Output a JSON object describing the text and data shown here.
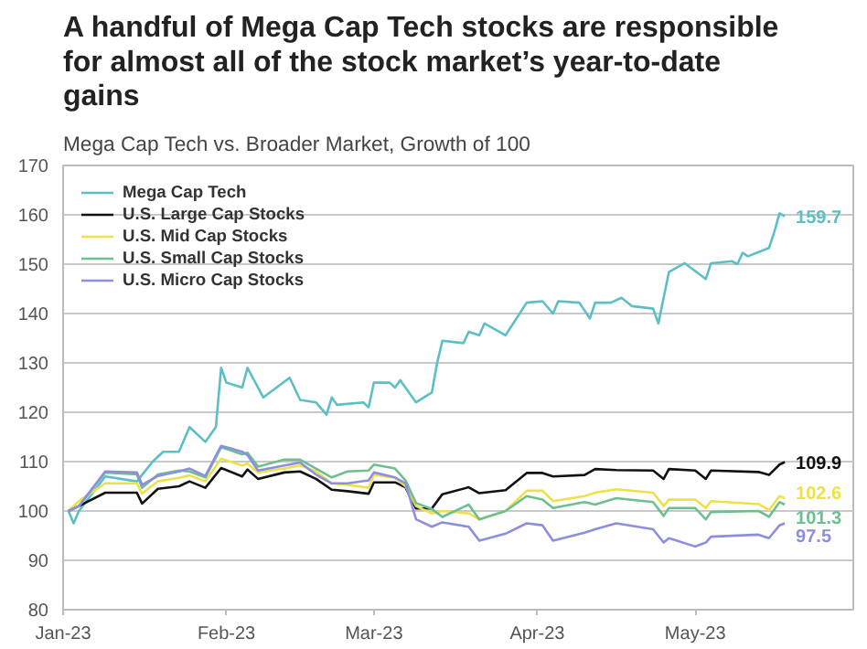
{
  "chart_data": {
    "type": "line",
    "title": "A handful of Mega Cap Tech stocks are responsible for almost all of the stock market’s year-to-date gains",
    "subtitle": "Mega Cap Tech vs. Broader Market, Growth of 100",
    "xlim": [
      "2023-01-01",
      "2023-05-31"
    ],
    "xticks": [
      {
        "value": "2023-01-01",
        "label": "Jan-23"
      },
      {
        "value": "2023-02-01",
        "label": "Feb-23"
      },
      {
        "value": "2023-03-01",
        "label": "Mar-23"
      },
      {
        "value": "2023-04-01",
        "label": "Apr-23"
      },
      {
        "value": "2023-05-01",
        "label": "May-23"
      }
    ],
    "ylim": [
      80,
      170
    ],
    "yticks": [
      80,
      90,
      100,
      110,
      120,
      130,
      140,
      150,
      160,
      170
    ],
    "grid": "y",
    "legend": "top left",
    "series": [
      {
        "name": "Mega Cap Tech",
        "color": "#5bbfc5",
        "x": [
          "2023-01-02",
          "2023-01-03",
          "2023-01-04",
          "2023-01-09",
          "2023-01-15",
          "2023-01-18",
          "2023-01-20",
          "2023-01-23",
          "2023-01-25",
          "2023-01-28",
          "2023-01-30",
          "2023-01-31",
          "2023-02-01",
          "2023-02-04",
          "2023-02-05",
          "2023-02-08",
          "2023-02-13",
          "2023-02-15",
          "2023-02-18",
          "2023-02-20",
          "2023-02-21",
          "2023-02-22",
          "2023-02-27",
          "2023-02-28",
          "2023-03-01",
          "2023-03-04",
          "2023-03-05",
          "2023-03-06",
          "2023-03-09",
          "2023-03-12",
          "2023-03-13",
          "2023-03-14",
          "2023-03-18",
          "2023-03-19",
          "2023-03-21",
          "2023-03-22",
          "2023-03-26",
          "2023-03-30",
          "2023-04-02",
          "2023-04-04",
          "2023-04-05",
          "2023-04-09",
          "2023-04-11",
          "2023-04-12",
          "2023-04-15",
          "2023-04-17",
          "2023-04-19",
          "2023-04-23",
          "2023-04-24",
          "2023-04-26",
          "2023-04-29",
          "2023-05-03",
          "2023-05-04",
          "2023-05-08",
          "2023-05-09",
          "2023-05-10",
          "2023-05-11",
          "2023-05-15",
          "2023-05-16",
          "2023-05-17",
          "2023-05-18"
        ],
        "values": [
          100,
          97.5,
          100,
          107,
          106,
          110,
          112,
          112,
          117,
          114,
          117,
          129,
          126,
          125,
          129,
          123,
          127,
          122.5,
          122,
          119.5,
          123,
          121.5,
          122,
          121,
          126,
          126,
          125,
          126.5,
          122,
          124,
          130,
          134.5,
          134,
          136.3,
          135.6,
          138,
          135.6,
          142.2,
          142.5,
          140,
          142.5,
          142.2,
          139,
          142.2,
          142.2,
          143.2,
          141.5,
          141,
          138,
          148.4,
          150.2,
          147,
          150.2,
          150.6,
          150,
          152.3,
          151.6,
          153.3,
          156.5,
          160.3,
          159.7
        ]
      },
      {
        "name": "U.S. Large Cap Stocks",
        "color": "#111111",
        "values": [
          100,
          101,
          103.7,
          103.7,
          101.5,
          104.5,
          105,
          106,
          104.7,
          108.7,
          107,
          108.4,
          106.5,
          107.8,
          108,
          106.5,
          104.3,
          104,
          103.5,
          105.8,
          105.8,
          104.8,
          100.5,
          100.5,
          103.4,
          104.8,
          103.6,
          104.2,
          107.7,
          107.7,
          107,
          107.3,
          108.5,
          108.3,
          108.2,
          106.5,
          108.5,
          108.2,
          106.5,
          108.2,
          107.9,
          107.3,
          109.4,
          109.9
        ]
      },
      {
        "name": "U.S. Mid Cap Stocks",
        "color": "#ede14a",
        "values": [
          100,
          102,
          105.6,
          105.6,
          103.5,
          106,
          106.7,
          107.2,
          106,
          110.6,
          109.2,
          109.6,
          107.8,
          108.6,
          109.2,
          108,
          105.6,
          105.3,
          104.7,
          107.3,
          106.7,
          105,
          101,
          99.5,
          100,
          99.5,
          98.3,
          100,
          104.1,
          104.1,
          102,
          103,
          103.7,
          104.4,
          103.7,
          101,
          102.3,
          102.3,
          100.6,
          102,
          101.4,
          100.2,
          103,
          102.6
        ]
      },
      {
        "name": "U.S. Small Cap Stocks",
        "color": "#6dbf8f",
        "values": [
          100,
          101,
          107.8,
          107.4,
          104.7,
          107.4,
          108.2,
          108,
          106.8,
          112.9,
          111.5,
          111.8,
          109,
          110.4,
          110.4,
          108.6,
          106.8,
          108,
          108.2,
          109.4,
          108.6,
          106.2,
          101.6,
          100.4,
          98.8,
          101.3,
          98.3,
          100,
          103,
          102.3,
          100.6,
          101.8,
          101.3,
          102.6,
          101.8,
          99,
          100.6,
          100.6,
          98.3,
          99.8,
          100,
          98.8,
          101.8,
          101.3
        ]
      },
      {
        "name": "U.S. Micro Cap Stocks",
        "color": "#8e8ee0",
        "values": [
          100,
          101,
          108,
          107.8,
          105.3,
          107.1,
          108,
          108.6,
          107.1,
          113.2,
          112,
          111.3,
          108.2,
          109.2,
          109.8,
          107.4,
          105.6,
          105.6,
          106.2,
          107.8,
          106.8,
          105.6,
          98.3,
          96.8,
          97.7,
          96.8,
          94,
          95.4,
          97.5,
          97.1,
          94,
          95.6,
          96.3,
          97.5,
          96.3,
          93.6,
          94.5,
          92.8,
          93.6,
          94.8,
          95.2,
          94.5,
          97.1,
          97.5
        ]
      }
    ],
    "x": [
      "2023-01-02",
      "2023-01-04",
      "2023-01-09",
      "2023-01-15",
      "2023-01-16",
      "2023-01-19",
      "2023-01-23",
      "2023-01-25",
      "2023-01-28",
      "2023-01-31",
      "2023-02-04",
      "2023-02-05",
      "2023-02-07",
      "2023-02-12",
      "2023-02-15",
      "2023-02-18",
      "2023-02-21",
      "2023-02-24",
      "2023-02-28",
      "2023-03-01",
      "2023-03-05",
      "2023-03-07",
      "2023-03-09",
      "2023-03-12",
      "2023-03-14",
      "2023-03-19",
      "2023-03-21",
      "2023-03-26",
      "2023-03-30",
      "2023-04-02",
      "2023-04-04",
      "2023-04-10",
      "2023-04-12",
      "2023-04-16",
      "2023-04-23",
      "2023-04-25",
      "2023-04-26",
      "2023-05-01",
      "2023-05-03",
      "2023-05-04",
      "2023-05-13",
      "2023-05-15",
      "2023-05-17",
      "2023-05-18"
    ],
    "annotations": [
      {
        "text": "159.7",
        "x": "2023-05-18",
        "y": 159.7
      },
      {
        "text": "109.9",
        "x": "2023-05-18",
        "y": 109.9
      },
      {
        "text": "102.6",
        "x": "2023-05-18",
        "y": 102.6
      },
      {
        "text": "101.3",
        "x": "2023-05-18",
        "y": 101.3
      },
      {
        "text": "97.5",
        "x": "2023-05-18",
        "y": 97.5
      }
    ]
  }
}
